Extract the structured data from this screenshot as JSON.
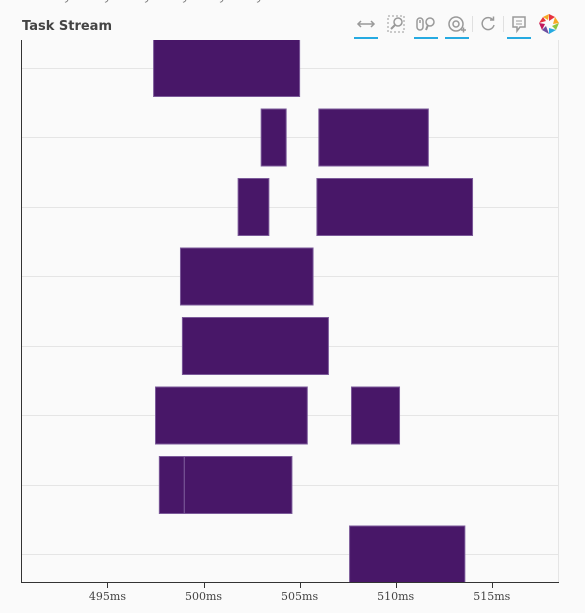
{
  "title": "Task Stream",
  "toolbar": {
    "tools": [
      {
        "name": "pan-tool",
        "icon": "xpan-icon",
        "active": true
      },
      {
        "name": "box-zoom-tool",
        "icon": "box-zoom-icon",
        "active": false
      },
      {
        "name": "wheel-zoom-tool",
        "icon": "wheel-zoom-icon",
        "active": true
      },
      {
        "name": "tap-tool",
        "icon": "tap-icon",
        "active": true
      },
      {
        "name": "reset-tool",
        "icon": "reset-icon",
        "active": false
      },
      {
        "name": "hover-tool",
        "icon": "hover-icon",
        "active": true
      },
      {
        "name": "bokeh-logo",
        "icon": "bokeh-logo-icon",
        "active": false
      }
    ]
  },
  "colors": {
    "bar_fill": "#481768",
    "bar_stroke": "#7b5a99",
    "grid": "#e5e5e5",
    "accent": "#26aae1"
  },
  "chart_data": {
    "type": "bar",
    "orientation": "horizontal",
    "title": "Task Stream",
    "xlim": [
      490.5,
      518.5
    ],
    "x_ticks": [
      495,
      500,
      505,
      510,
      515
    ],
    "x_tick_labels": [
      "495ms",
      "500ms",
      "505ms",
      "510ms",
      "515ms"
    ],
    "y_rows": 8,
    "grid": true,
    "tasks": [
      {
        "row": 0,
        "start": 497.4,
        "end": 505.0
      },
      {
        "row": 1,
        "start": 503.0,
        "end": 504.3
      },
      {
        "row": 1,
        "start": 506.0,
        "end": 511.7
      },
      {
        "row": 2,
        "start": 501.8,
        "end": 503.4
      },
      {
        "row": 2,
        "start": 505.9,
        "end": 514.0
      },
      {
        "row": 3,
        "start": 498.8,
        "end": 505.7
      },
      {
        "row": 4,
        "start": 498.9,
        "end": 506.5
      },
      {
        "row": 5,
        "start": 497.5,
        "end": 505.4
      },
      {
        "row": 5,
        "start": 507.7,
        "end": 510.2
      },
      {
        "row": 6,
        "start": 497.7,
        "end": 499.0
      },
      {
        "row": 6,
        "start": 499.0,
        "end": 504.6
      },
      {
        "row": 7,
        "start": 507.6,
        "end": 513.6
      }
    ]
  }
}
